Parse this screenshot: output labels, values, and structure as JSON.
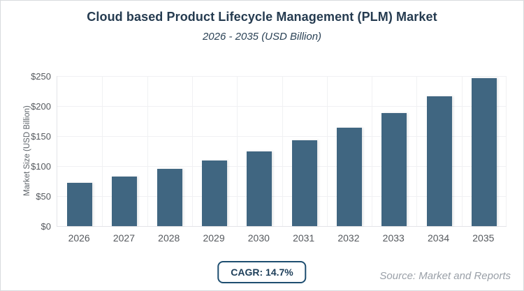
{
  "header": {
    "title": "Cloud based Product Lifecycle Management (PLM) Market",
    "subtitle": "2026 - 2035 (USD Billion)"
  },
  "footer": {
    "cagr_label": "CAGR: 14.7%",
    "source": "Source: Market and Reports"
  },
  "chart_data": {
    "type": "bar",
    "title": "Cloud based Product Lifecycle Management (PLM) Market",
    "subtitle": "2026 - 2035 (USD Billion)",
    "categories": [
      "2026",
      "2027",
      "2028",
      "2029",
      "2030",
      "2031",
      "2032",
      "2033",
      "2034",
      "2035"
    ],
    "values": [
      72,
      83,
      95,
      109,
      125,
      143,
      164,
      188,
      216,
      247
    ],
    "xlabel": "",
    "ylabel": "Market Size (USD Billion)",
    "ylim": [
      0,
      250
    ],
    "ytick_values": [
      0,
      50,
      100,
      150,
      200,
      250
    ],
    "ytick_labels": [
      "$0",
      "$50",
      "$100",
      "$150",
      "$200",
      "$250"
    ],
    "grid": true,
    "legend": false,
    "annotations": [
      "CAGR: 14.7%"
    ],
    "colors": {
      "bar": "#406681",
      "grid": "#f0f1f3",
      "axis": "#e3e4e8",
      "tick_text": "#55595e",
      "title_text": "#253b50",
      "badge_border": "#1e4e70",
      "badge_text": "#1d3e59",
      "source_text": "#9aa0a8",
      "card_border": "#d8dbde"
    }
  }
}
